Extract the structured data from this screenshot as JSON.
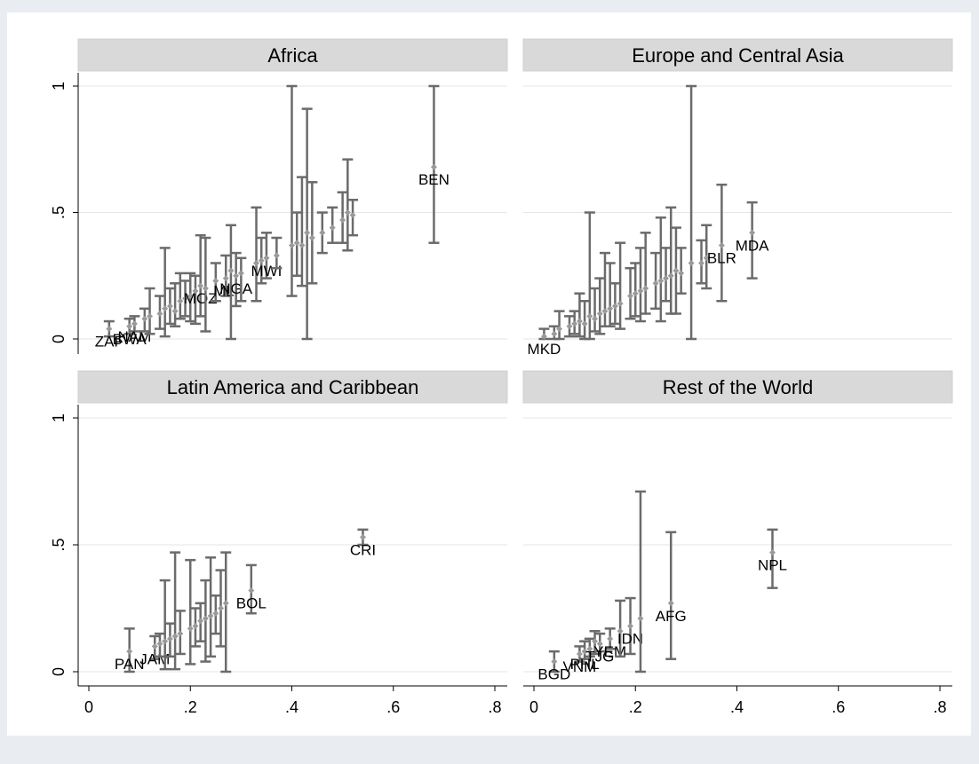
{
  "chart_data": {
    "type": "scatter",
    "layout": "2x2 facets",
    "xlim": [
      0,
      0.8
    ],
    "ylim": [
      0,
      1
    ],
    "x_ticks": [
      0,
      0.2,
      0.4,
      0.6,
      0.8
    ],
    "x_tick_labels": [
      "0",
      ".2",
      ".4",
      ".6",
      ".8"
    ],
    "y_ticks": [
      0,
      0.5,
      1
    ],
    "y_tick_labels": [
      "0",
      ".5",
      "1"
    ],
    "grid": "horizontal",
    "marker_color": "#9a9a9a",
    "error_bar_color": "#6b6b6b",
    "facets": [
      {
        "title": "Africa",
        "points": [
          {
            "label": "ZAF",
            "x": 0.04,
            "y": 0.04,
            "lo": 0.01,
            "hi": 0.07
          },
          {
            "label": "BWA",
            "x": 0.08,
            "y": 0.05,
            "lo": 0.02,
            "hi": 0.08
          },
          {
            "label": "NAM",
            "x": 0.09,
            "y": 0.06,
            "lo": 0.03,
            "hi": 0.09
          },
          {
            "label": "",
            "x": 0.11,
            "y": 0.08,
            "lo": 0.03,
            "hi": 0.12
          },
          {
            "label": "",
            "x": 0.12,
            "y": 0.09,
            "lo": 0.02,
            "hi": 0.2
          },
          {
            "label": "",
            "x": 0.14,
            "y": 0.1,
            "lo": 0.04,
            "hi": 0.17
          },
          {
            "label": "",
            "x": 0.15,
            "y": 0.12,
            "lo": 0.01,
            "hi": 0.36
          },
          {
            "label": "",
            "x": 0.16,
            "y": 0.13,
            "lo": 0.06,
            "hi": 0.2
          },
          {
            "label": "",
            "x": 0.17,
            "y": 0.11,
            "lo": 0.05,
            "hi": 0.22
          },
          {
            "label": "",
            "x": 0.18,
            "y": 0.15,
            "lo": 0.08,
            "hi": 0.26
          },
          {
            "label": "",
            "x": 0.19,
            "y": 0.16,
            "lo": 0.09,
            "hi": 0.23
          },
          {
            "label": "",
            "x": 0.2,
            "y": 0.17,
            "lo": 0.07,
            "hi": 0.26
          },
          {
            "label": "",
            "x": 0.21,
            "y": 0.19,
            "lo": 0.06,
            "hi": 0.25
          },
          {
            "label": "MOZ",
            "x": 0.22,
            "y": 0.21,
            "lo": 0.09,
            "hi": 0.41
          },
          {
            "label": "",
            "x": 0.23,
            "y": 0.2,
            "lo": 0.03,
            "hi": 0.4
          },
          {
            "label": "",
            "x": 0.25,
            "y": 0.23,
            "lo": 0.15,
            "hi": 0.3
          },
          {
            "label": "MLI",
            "x": 0.27,
            "y": 0.24,
            "lo": 0.17,
            "hi": 0.33
          },
          {
            "label": "",
            "x": 0.28,
            "y": 0.27,
            "lo": 0.0,
            "hi": 0.45
          },
          {
            "label": "NGA",
            "x": 0.29,
            "y": 0.25,
            "lo": 0.13,
            "hi": 0.34
          },
          {
            "label": "",
            "x": 0.3,
            "y": 0.26,
            "lo": 0.15,
            "hi": 0.32
          },
          {
            "label": "",
            "x": 0.33,
            "y": 0.3,
            "lo": 0.15,
            "hi": 0.52
          },
          {
            "label": "",
            "x": 0.34,
            "y": 0.31,
            "lo": 0.22,
            "hi": 0.4
          },
          {
            "label": "MWI",
            "x": 0.35,
            "y": 0.32,
            "lo": 0.24,
            "hi": 0.42
          },
          {
            "label": "",
            "x": 0.37,
            "y": 0.33,
            "lo": 0.28,
            "hi": 0.4
          },
          {
            "label": "",
            "x": 0.4,
            "y": 0.37,
            "lo": 0.17,
            "hi": 1.0
          },
          {
            "label": "",
            "x": 0.41,
            "y": 0.38,
            "lo": 0.25,
            "hi": 0.5
          },
          {
            "label": "",
            "x": 0.42,
            "y": 0.37,
            "lo": 0.21,
            "hi": 0.64
          },
          {
            "label": "",
            "x": 0.43,
            "y": 0.42,
            "lo": 0.0,
            "hi": 0.91
          },
          {
            "label": "",
            "x": 0.44,
            "y": 0.4,
            "lo": 0.22,
            "hi": 0.62
          },
          {
            "label": "",
            "x": 0.46,
            "y": 0.42,
            "lo": 0.34,
            "hi": 0.5
          },
          {
            "label": "",
            "x": 0.48,
            "y": 0.44,
            "lo": 0.38,
            "hi": 0.52
          },
          {
            "label": "",
            "x": 0.5,
            "y": 0.47,
            "lo": 0.38,
            "hi": 0.58
          },
          {
            "label": "",
            "x": 0.51,
            "y": 0.5,
            "lo": 0.35,
            "hi": 0.71
          },
          {
            "label": "",
            "x": 0.52,
            "y": 0.49,
            "lo": 0.41,
            "hi": 0.55
          },
          {
            "label": "BEN",
            "x": 0.68,
            "y": 0.68,
            "lo": 0.38,
            "hi": 1.0
          }
        ]
      },
      {
        "title": "Europe and Central Asia",
        "points": [
          {
            "label": "MKD",
            "x": 0.02,
            "y": 0.01,
            "lo": 0.0,
            "hi": 0.04
          },
          {
            "label": "",
            "x": 0.04,
            "y": 0.02,
            "lo": 0.0,
            "hi": 0.05
          },
          {
            "label": "",
            "x": 0.05,
            "y": 0.04,
            "lo": 0.0,
            "hi": 0.11
          },
          {
            "label": "",
            "x": 0.07,
            "y": 0.05,
            "lo": 0.01,
            "hi": 0.09
          },
          {
            "label": "",
            "x": 0.08,
            "y": 0.06,
            "lo": 0.02,
            "hi": 0.11
          },
          {
            "label": "",
            "x": 0.09,
            "y": 0.07,
            "lo": 0.01,
            "hi": 0.18
          },
          {
            "label": "",
            "x": 0.1,
            "y": 0.06,
            "lo": 0.0,
            "hi": 0.15
          },
          {
            "label": "",
            "x": 0.11,
            "y": 0.09,
            "lo": 0.0,
            "hi": 0.5
          },
          {
            "label": "",
            "x": 0.12,
            "y": 0.08,
            "lo": 0.03,
            "hi": 0.2
          },
          {
            "label": "",
            "x": 0.13,
            "y": 0.1,
            "lo": 0.02,
            "hi": 0.24
          },
          {
            "label": "",
            "x": 0.14,
            "y": 0.11,
            "lo": 0.05,
            "hi": 0.34
          },
          {
            "label": "",
            "x": 0.15,
            "y": 0.12,
            "lo": 0.05,
            "hi": 0.3
          },
          {
            "label": "",
            "x": 0.16,
            "y": 0.13,
            "lo": 0.06,
            "hi": 0.22
          },
          {
            "label": "",
            "x": 0.17,
            "y": 0.14,
            "lo": 0.04,
            "hi": 0.38
          },
          {
            "label": "",
            "x": 0.19,
            "y": 0.17,
            "lo": 0.08,
            "hi": 0.28
          },
          {
            "label": "",
            "x": 0.2,
            "y": 0.18,
            "lo": 0.09,
            "hi": 0.3
          },
          {
            "label": "",
            "x": 0.21,
            "y": 0.19,
            "lo": 0.07,
            "hi": 0.36
          },
          {
            "label": "",
            "x": 0.22,
            "y": 0.2,
            "lo": 0.1,
            "hi": 0.42
          },
          {
            "label": "",
            "x": 0.24,
            "y": 0.22,
            "lo": 0.12,
            "hi": 0.34
          },
          {
            "label": "",
            "x": 0.25,
            "y": 0.23,
            "lo": 0.07,
            "hi": 0.48
          },
          {
            "label": "",
            "x": 0.26,
            "y": 0.24,
            "lo": 0.15,
            "hi": 0.36
          },
          {
            "label": "",
            "x": 0.27,
            "y": 0.25,
            "lo": 0.1,
            "hi": 0.52
          },
          {
            "label": "",
            "x": 0.28,
            "y": 0.27,
            "lo": 0.1,
            "hi": 0.44
          },
          {
            "label": "",
            "x": 0.29,
            "y": 0.26,
            "lo": 0.18,
            "hi": 0.36
          },
          {
            "label": "",
            "x": 0.31,
            "y": 0.3,
            "lo": 0.0,
            "hi": 1.0
          },
          {
            "label": "",
            "x": 0.33,
            "y": 0.3,
            "lo": 0.22,
            "hi": 0.39
          },
          {
            "label": "",
            "x": 0.34,
            "y": 0.32,
            "lo": 0.2,
            "hi": 0.45
          },
          {
            "label": "BLR",
            "x": 0.37,
            "y": 0.37,
            "lo": 0.15,
            "hi": 0.61
          },
          {
            "label": "MDA",
            "x": 0.43,
            "y": 0.42,
            "lo": 0.24,
            "hi": 0.54
          }
        ]
      },
      {
        "title": "Latin America and Caribbean",
        "points": [
          {
            "label": "PAN",
            "x": 0.08,
            "y": 0.08,
            "lo": 0.0,
            "hi": 0.17
          },
          {
            "label": "JAM",
            "x": 0.13,
            "y": 0.1,
            "lo": 0.05,
            "hi": 0.14
          },
          {
            "label": "",
            "x": 0.14,
            "y": 0.11,
            "lo": 0.06,
            "hi": 0.15
          },
          {
            "label": "",
            "x": 0.15,
            "y": 0.12,
            "lo": 0.01,
            "hi": 0.36
          },
          {
            "label": "",
            "x": 0.16,
            "y": 0.13,
            "lo": 0.06,
            "hi": 0.19
          },
          {
            "label": "",
            "x": 0.17,
            "y": 0.14,
            "lo": 0.01,
            "hi": 0.47
          },
          {
            "label": "",
            "x": 0.18,
            "y": 0.15,
            "lo": 0.07,
            "hi": 0.24
          },
          {
            "label": "",
            "x": 0.2,
            "y": 0.17,
            "lo": 0.03,
            "hi": 0.44
          },
          {
            "label": "",
            "x": 0.21,
            "y": 0.18,
            "lo": 0.1,
            "hi": 0.25
          },
          {
            "label": "",
            "x": 0.22,
            "y": 0.2,
            "lo": 0.12,
            "hi": 0.27
          },
          {
            "label": "",
            "x": 0.23,
            "y": 0.21,
            "lo": 0.04,
            "hi": 0.36
          },
          {
            "label": "",
            "x": 0.24,
            "y": 0.22,
            "lo": 0.06,
            "hi": 0.45
          },
          {
            "label": "",
            "x": 0.25,
            "y": 0.23,
            "lo": 0.15,
            "hi": 0.3
          },
          {
            "label": "",
            "x": 0.26,
            "y": 0.25,
            "lo": 0.1,
            "hi": 0.4
          },
          {
            "label": "",
            "x": 0.27,
            "y": 0.27,
            "lo": 0.0,
            "hi": 0.47
          },
          {
            "label": "BOL",
            "x": 0.32,
            "y": 0.32,
            "lo": 0.23,
            "hi": 0.42
          },
          {
            "label": "CRI",
            "x": 0.54,
            "y": 0.53,
            "lo": 0.5,
            "hi": 0.56
          }
        ]
      },
      {
        "title": "Rest of the World",
        "points": [
          {
            "label": "BGD",
            "x": 0.04,
            "y": 0.04,
            "lo": 0.0,
            "hi": 0.08
          },
          {
            "label": "VNM",
            "x": 0.09,
            "y": 0.07,
            "lo": 0.04,
            "hi": 0.1
          },
          {
            "label": "PHL",
            "x": 0.1,
            "y": 0.08,
            "lo": 0.05,
            "hi": 0.12
          },
          {
            "label": "",
            "x": 0.11,
            "y": 0.09,
            "lo": 0.06,
            "hi": 0.13
          },
          {
            "label": "",
            "x": 0.12,
            "y": 0.12,
            "lo": 0.07,
            "hi": 0.16
          },
          {
            "label": "TJG",
            "x": 0.13,
            "y": 0.11,
            "lo": 0.08,
            "hi": 0.15
          },
          {
            "label": "YEM",
            "x": 0.15,
            "y": 0.13,
            "lo": 0.09,
            "hi": 0.17
          },
          {
            "label": "",
            "x": 0.17,
            "y": 0.16,
            "lo": 0.06,
            "hi": 0.28
          },
          {
            "label": "IDN",
            "x": 0.19,
            "y": 0.18,
            "lo": 0.07,
            "hi": 0.29
          },
          {
            "label": "",
            "x": 0.21,
            "y": 0.21,
            "lo": 0.0,
            "hi": 0.71
          },
          {
            "label": "AFG",
            "x": 0.27,
            "y": 0.27,
            "lo": 0.05,
            "hi": 0.55
          },
          {
            "label": "NPL",
            "x": 0.47,
            "y": 0.47,
            "lo": 0.33,
            "hi": 0.56
          }
        ]
      }
    ]
  }
}
